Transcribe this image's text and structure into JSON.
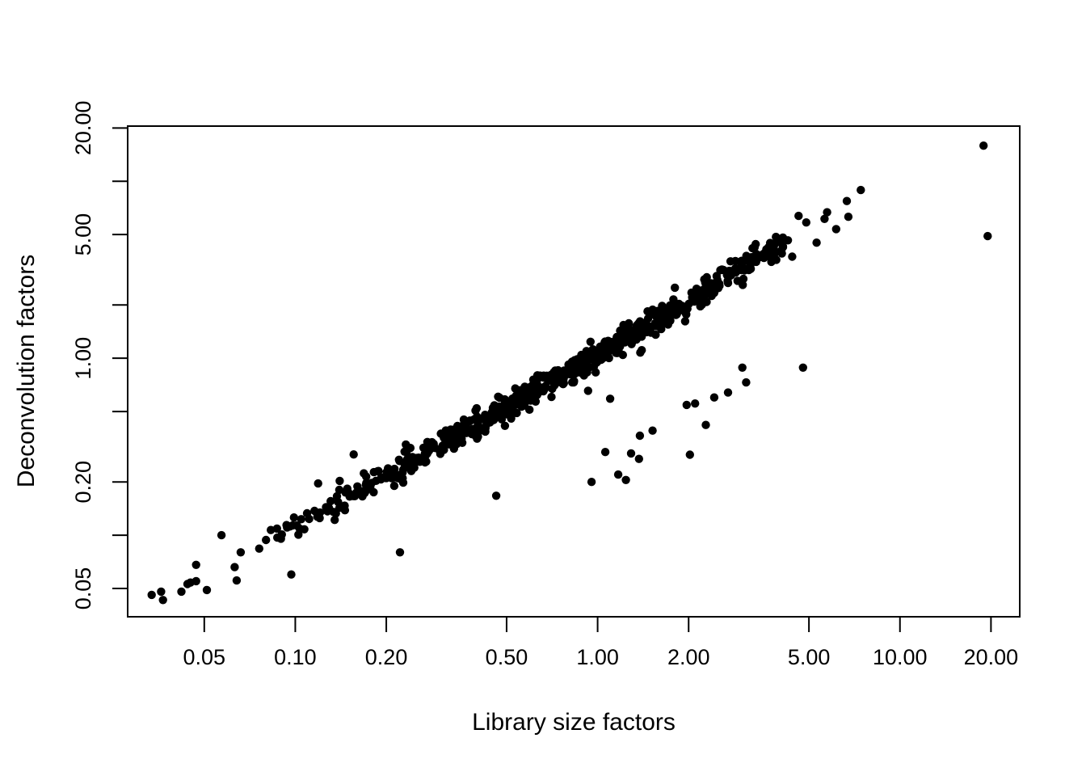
{
  "figure": {
    "background_color": "#ffffff",
    "foreground_color": "#000000",
    "title": ""
  },
  "chart_data": {
    "type": "scatter",
    "title": "",
    "xlabel": "Library size factors",
    "ylabel": "Deconvolution factors",
    "log_scale_x": true,
    "log_scale_y": true,
    "xlim": [
      0.0279,
      24.9
    ],
    "ylim": [
      0.0346,
      20.5
    ],
    "grid": false,
    "legend_position": "none",
    "marker": {
      "shape": "filled-circle",
      "color": "#000000",
      "radius_px": 5.2
    },
    "x_ticks": [
      {
        "value": 0.05,
        "label": "0.05"
      },
      {
        "value": 0.1,
        "label": "0.10"
      },
      {
        "value": 0.2,
        "label": "0.20"
      },
      {
        "value": 0.5,
        "label": "0.50"
      },
      {
        "value": 1.0,
        "label": "1.00"
      },
      {
        "value": 2.0,
        "label": "2.00"
      },
      {
        "value": 5.0,
        "label": "5.00"
      },
      {
        "value": 10.0,
        "label": "10.00"
      },
      {
        "value": 20.0,
        "label": "20.00"
      }
    ],
    "y_ticks": [
      {
        "value": 0.05,
        "label": "0.05"
      },
      {
        "value": 0.1,
        "label": ""
      },
      {
        "value": 0.2,
        "label": "0.20"
      },
      {
        "value": 0.5,
        "label": ""
      },
      {
        "value": 1.0,
        "label": "1.00"
      },
      {
        "value": 2.0,
        "label": ""
      },
      {
        "value": 5.0,
        "label": "5.00"
      },
      {
        "value": 10.0,
        "label": ""
      },
      {
        "value": 20.0,
        "label": "20.00"
      }
    ],
    "series": [
      {
        "name": "main-diagonal-cloud",
        "representation": "generated",
        "generator": {
          "n": 700,
          "seed": 20,
          "logx_mean": -0.08,
          "logx_sd": 0.46,
          "logx_min": -1.07,
          "logx_max": 0.62,
          "trend_intercept": 0.02,
          "trend_quad": 0.025,
          "noise_sd": 0.038
        }
      },
      {
        "name": "lower-left-points",
        "points": [
          [
            0.0335,
            0.046
          ],
          [
            0.036,
            0.048
          ],
          [
            0.0365,
            0.043
          ],
          [
            0.042,
            0.048
          ],
          [
            0.044,
            0.053
          ],
          [
            0.045,
            0.054
          ],
          [
            0.047,
            0.068
          ],
          [
            0.047,
            0.055
          ],
          [
            0.051,
            0.049
          ],
          [
            0.063,
            0.066
          ],
          [
            0.064,
            0.0555
          ],
          [
            0.066,
            0.08
          ],
          [
            0.076,
            0.084
          ],
          [
            0.08,
            0.094
          ],
          [
            0.083,
            0.107
          ],
          [
            0.087,
            0.109
          ],
          [
            0.096,
            0.112
          ]
        ]
      },
      {
        "name": "below-diagonal-outliers",
        "points": [
          [
            0.097,
            0.06
          ],
          [
            0.135,
            0.122
          ],
          [
            0.222,
            0.08
          ],
          [
            0.462,
            0.167
          ],
          [
            0.93,
            0.655
          ],
          [
            1.1,
            0.59
          ],
          [
            0.955,
            0.2
          ],
          [
            1.06,
            0.295
          ],
          [
            1.17,
            0.22
          ],
          [
            1.24,
            0.205
          ],
          [
            1.29,
            0.29
          ],
          [
            1.37,
            0.27
          ],
          [
            1.38,
            0.365
          ],
          [
            1.52,
            0.39
          ],
          [
            1.97,
            0.545
          ],
          [
            2.1,
            0.555
          ],
          [
            2.02,
            0.285
          ],
          [
            2.28,
            0.42
          ],
          [
            2.43,
            0.6
          ],
          [
            2.7,
            0.64
          ],
          [
            3.01,
            0.885
          ],
          [
            3.1,
            0.73
          ],
          [
            4.78,
            0.885
          ]
        ]
      },
      {
        "name": "above-diagonal-outliers",
        "points": [
          [
            0.057,
            0.1
          ],
          [
            0.119,
            0.196
          ],
          [
            0.156,
            0.286
          ]
        ]
      },
      {
        "name": "upper-tip-points",
        "points": [
          [
            3.72,
            4.48
          ],
          [
            3.9,
            3.6
          ],
          [
            4.05,
            4.05
          ],
          [
            4.26,
            4.64
          ],
          [
            4.4,
            3.75
          ],
          [
            4.62,
            6.37
          ],
          [
            4.9,
            5.85
          ],
          [
            5.3,
            4.5
          ],
          [
            5.63,
            6.13
          ],
          [
            5.74,
            6.68
          ],
          [
            6.15,
            5.37
          ],
          [
            6.67,
            7.73
          ],
          [
            6.75,
            6.3
          ],
          [
            7.42,
            8.92
          ]
        ]
      },
      {
        "name": "far-right-outliers",
        "points": [
          [
            18.9,
            15.9
          ],
          [
            19.5,
            4.9
          ]
        ]
      }
    ]
  }
}
